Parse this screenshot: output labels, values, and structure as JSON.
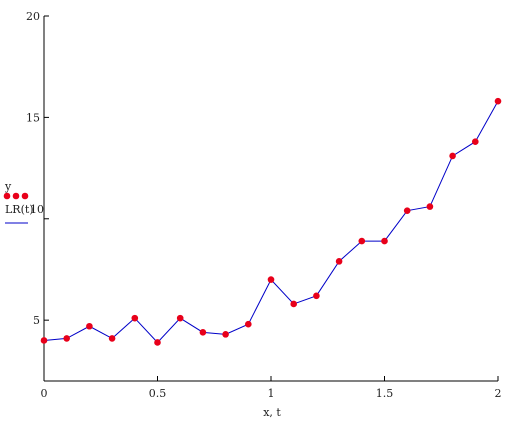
{
  "chart_data": {
    "type": "line",
    "xlabel": "x, t",
    "ylim": [
      2,
      20
    ],
    "xlim": [
      0,
      2
    ],
    "x_ticks": [
      {
        "value": 0,
        "label": "0"
      },
      {
        "value": 0.5,
        "label": "0.5"
      },
      {
        "value": 1,
        "label": "1"
      },
      {
        "value": 1.5,
        "label": "1.5"
      },
      {
        "value": 2,
        "label": "2"
      }
    ],
    "y_ticks": [
      {
        "value": 5,
        "label": "5"
      },
      {
        "value": 15,
        "label": "15"
      },
      {
        "value": 20,
        "label": "20"
      }
    ],
    "y_tick_10_label": "10",
    "grid": false,
    "legend": {
      "placement": "left",
      "series_label_y": "y",
      "series_label_fit": "LR(t)"
    },
    "x": [
      0,
      0.1,
      0.2,
      0.3,
      0.4,
      0.5,
      0.6,
      0.7,
      0.8,
      0.9,
      1.0,
      1.1,
      1.2,
      1.3,
      1.4,
      1.5,
      1.6,
      1.7,
      1.8,
      1.9,
      2.0
    ],
    "series": [
      {
        "type": "scatter",
        "color": "#e8001a",
        "values": [
          4.0,
          4.1,
          4.7,
          4.1,
          5.1,
          3.9,
          5.1,
          4.4,
          4.3,
          4.8,
          7.0,
          5.8,
          6.2,
          7.9,
          8.9,
          8.9,
          10.4,
          10.6,
          13.1,
          13.8,
          15.8
        ]
      },
      {
        "type": "line",
        "color": "#0000c8",
        "values": [
          4.0,
          4.1,
          4.7,
          4.1,
          5.1,
          3.9,
          5.1,
          4.4,
          4.3,
          4.8,
          7.0,
          5.8,
          6.2,
          7.9,
          8.9,
          8.9,
          10.4,
          10.6,
          13.1,
          13.8,
          15.8
        ]
      }
    ]
  }
}
